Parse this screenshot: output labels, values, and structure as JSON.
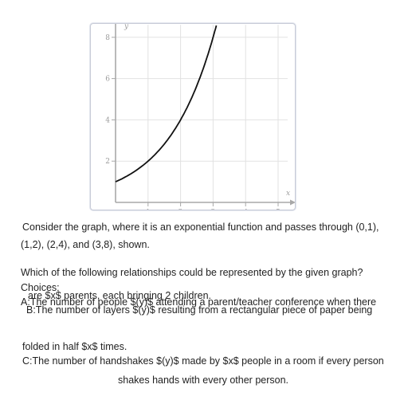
{
  "chart_data": {
    "type": "line",
    "function": "y = 2^x",
    "x": [
      0,
      0.5,
      1,
      1.5,
      2,
      2.5,
      3,
      3.1
    ],
    "y": [
      1,
      1.414,
      2,
      2.828,
      4,
      5.657,
      8,
      8.57
    ],
    "xlabel": "x",
    "ylabel": "y",
    "xlim": [
      0,
      5
    ],
    "ylim": [
      0,
      8.6
    ],
    "x_ticks": [
      "1",
      "2",
      "3",
      "4",
      "5"
    ],
    "y_ticks": [
      "2",
      "4",
      "6",
      "8"
    ],
    "grid": true
  },
  "question": {
    "line1": "Consider the graph, where it is an exponential function and passes through (0,1),",
    "line2": "(1,2), (2,4), and (3,8), shown.",
    "prompt": "Which of the following relationships could be represented by the given graph?",
    "choices_label": "Choices:",
    "choice_a_overlap": "are $x$ parents, each bringing 2 children.",
    "choice_a": "A:The number of people $(y)$ attending a parent/teacher conference when there",
    "choice_b_line1": "B:The number of layers $(y)$ resulting from a rectangular piece of paper being",
    "choice_b_line2": "folded in half $x$ times.",
    "choice_c_line1": "C:The number of handshakes $(y)$ made by $x$ people in a room if every person",
    "choice_c_line2": "shakes hands with every other person."
  }
}
